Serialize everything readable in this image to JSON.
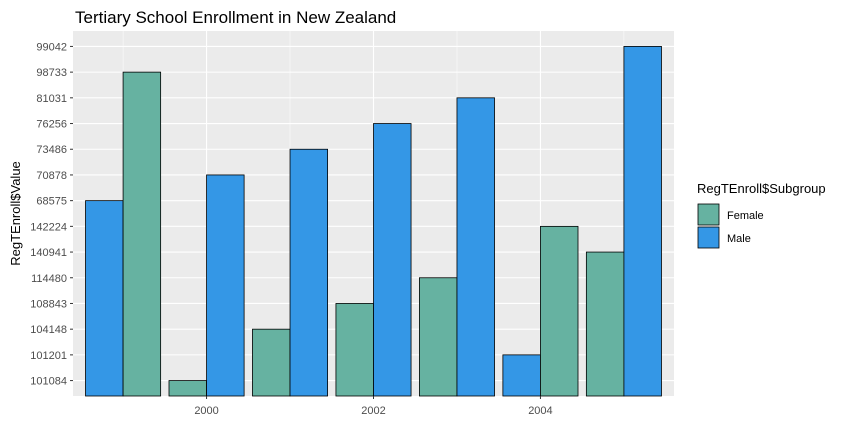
{
  "chart_data": {
    "type": "bar",
    "title": "Tertiary School Enrollment in New Zealand",
    "xlabel": "",
    "ylabel": "RegTEnroll$Value",
    "y_categories": [
      "101084",
      "101201",
      "104148",
      "108843",
      "114480",
      "140941",
      "142224",
      "68575",
      "70878",
      "73486",
      "76256",
      "81031",
      "98733",
      "99042"
    ],
    "x_tick_labels": [
      "2000",
      "2002",
      "2004"
    ],
    "x_ticks": [
      2000,
      2002,
      2004
    ],
    "xlim": [
      1998.4,
      2005.6
    ],
    "legend": {
      "title": "RegTEnroll$Subgroup",
      "position": "right",
      "entries": [
        {
          "name": "Female",
          "color": "#66b2a1"
        },
        {
          "name": "Male",
          "color": "#3497e6"
        }
      ]
    },
    "grid": true,
    "bars": [
      {
        "year": 1999,
        "subgroup": "Male",
        "value": "68575"
      },
      {
        "year": 1999,
        "subgroup": "Female",
        "value": "98733"
      },
      {
        "year": 2000,
        "subgroup": "Female",
        "value": "101084"
      },
      {
        "year": 2000,
        "subgroup": "Male",
        "value": "70878"
      },
      {
        "year": 2001,
        "subgroup": "Female",
        "value": "104148"
      },
      {
        "year": 2001,
        "subgroup": "Male",
        "value": "73486"
      },
      {
        "year": 2002,
        "subgroup": "Female",
        "value": "108843"
      },
      {
        "year": 2002,
        "subgroup": "Male",
        "value": "76256"
      },
      {
        "year": 2003,
        "subgroup": "Female",
        "value": "114480"
      },
      {
        "year": 2003,
        "subgroup": "Male",
        "value": "81031"
      },
      {
        "year": 2004,
        "subgroup": "Male",
        "value": "101201"
      },
      {
        "year": 2004,
        "subgroup": "Female",
        "value": "142224"
      },
      {
        "year": 2005,
        "subgroup": "Female",
        "value": "140941"
      },
      {
        "year": 2005,
        "subgroup": "Male",
        "value": "99042"
      }
    ]
  }
}
